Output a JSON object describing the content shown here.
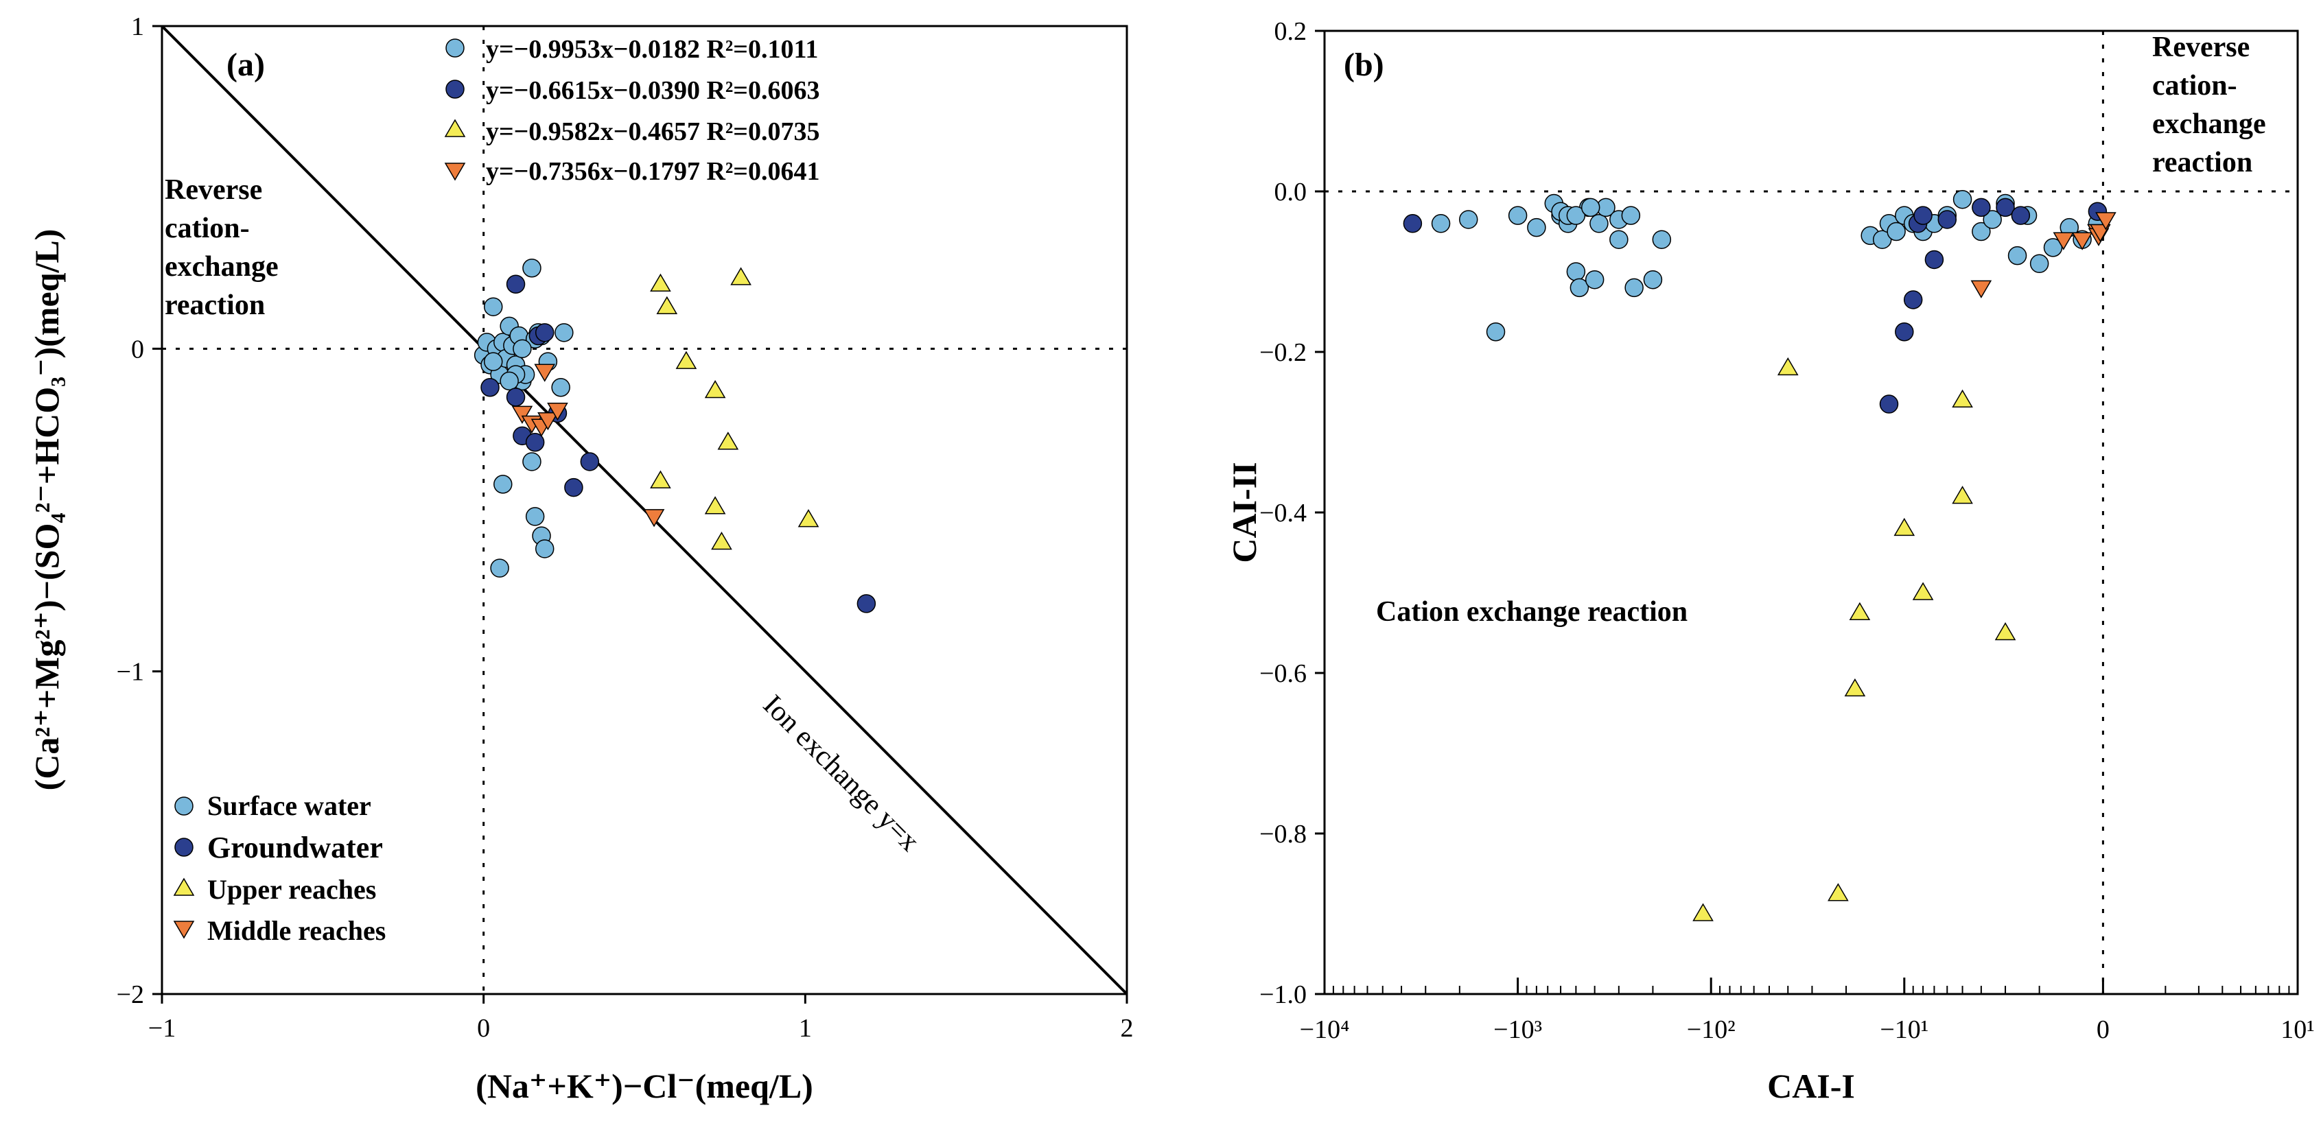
{
  "chart_data": [
    {
      "panel": "(a)",
      "type": "scatter",
      "xlabel": "(Na⁺+K⁺)−Cl⁻(meq/L)",
      "ylabel": "(Ca²⁺+Mg²⁺)−(SO₄²⁻+HCO₃⁻)(meq/L)",
      "xlim": [
        -1,
        2
      ],
      "ylim": [
        -2,
        1
      ],
      "xticks": [
        -1,
        0,
        1,
        2
      ],
      "xtick_labels": [
        "−1",
        "0",
        "1",
        "2"
      ],
      "yticks": [
        -2,
        -1,
        0,
        1
      ],
      "ytick_labels": [
        "−2",
        "−1",
        "0",
        "1"
      ],
      "reference_line": {
        "label": "Ion exchange  y=x",
        "x": [
          -1,
          2
        ],
        "y": [
          1,
          -2
        ]
      },
      "annotations": [
        "Reverse",
        "cation-",
        "exchange",
        "reaction"
      ],
      "equations": [
        "y=−0.9953x−0.0182 R²=0.1011",
        "y=−0.6615x−0.0390 R²=0.6063",
        "y=−0.9582x−0.4657 R²=0.0735",
        "y=−0.7356x−0.1797 R²=0.0641"
      ],
      "series": [
        {
          "name": "Surface water",
          "marker": "circle",
          "color": "#79b8dc",
          "x": [
            0.0,
            0.01,
            0.02,
            0.03,
            0.04,
            0.05,
            0.06,
            0.07,
            0.08,
            0.09,
            0.1,
            0.11,
            0.12,
            0.13,
            0.15,
            0.16,
            0.17,
            0.18,
            0.2,
            0.24,
            0.25,
            0.06,
            0.15,
            0.16,
            0.18,
            0.19,
            0.05,
            0.1,
            0.03,
            0.08,
            0.12
          ],
          "y": [
            -0.02,
            0.02,
            -0.05,
            0.13,
            0.0,
            -0.08,
            0.02,
            -0.03,
            0.07,
            0.01,
            -0.05,
            0.04,
            -0.1,
            -0.08,
            0.25,
            0.03,
            0.05,
            0.04,
            -0.04,
            -0.12,
            0.05,
            -0.42,
            -0.35,
            -0.52,
            -0.58,
            -0.62,
            -0.68,
            -0.08,
            -0.04,
            -0.1,
            0.0
          ]
        },
        {
          "name": "Groundwater",
          "marker": "circle",
          "color": "#2b3f8e",
          "x": [
            0.02,
            0.1,
            0.1,
            0.12,
            0.16,
            0.17,
            0.19,
            0.23,
            0.28,
            0.33,
            1.19
          ],
          "y": [
            -0.12,
            0.2,
            -0.15,
            -0.27,
            -0.29,
            0.04,
            0.05,
            -0.2,
            -0.43,
            -0.35,
            -0.79
          ]
        },
        {
          "name": "Upper reaches",
          "marker": "triangle-up",
          "color": "#f4ec56",
          "x": [
            0.55,
            0.57,
            0.63,
            0.72,
            0.76,
            0.8,
            0.55,
            0.72,
            0.74,
            1.01
          ],
          "y": [
            0.2,
            0.13,
            -0.04,
            -0.13,
            -0.29,
            0.22,
            -0.41,
            -0.49,
            -0.6,
            -0.53
          ]
        },
        {
          "name": "Middle reaches",
          "marker": "triangle-down",
          "color": "#ee7d3c",
          "x": [
            0.12,
            0.15,
            0.18,
            0.2,
            0.23,
            0.53,
            0.19
          ],
          "y": [
            -0.2,
            -0.23,
            -0.24,
            -0.22,
            -0.19,
            -0.52,
            -0.07
          ]
        }
      ],
      "legend": [
        "Surface water",
        "Groundwater",
        "Upper reaches",
        "Middle reaches"
      ]
    },
    {
      "panel": "(b)",
      "type": "scatter",
      "xlabel": "CAI-I",
      "ylabel": "CAI-II",
      "xscale": "symlog",
      "xlim": [
        -10000,
        10
      ],
      "ylim": [
        -1.0,
        0.2
      ],
      "xticks": [
        -10000,
        -1000,
        -100,
        -10,
        0,
        10
      ],
      "xtick_labels": [
        "−10⁴",
        "−10³",
        "−10²",
        "−10¹",
        "0",
        "10¹"
      ],
      "yticks": [
        -1.0,
        -0.8,
        -0.6,
        -0.4,
        -0.2,
        0.0,
        0.2
      ],
      "ytick_labels": [
        "−1.0",
        "−0.8",
        "−0.6",
        "−0.4",
        "−0.2",
        "0.0",
        "0.2"
      ],
      "annotations": {
        "top_right": [
          "Reverse",
          "cation-",
          "exchange",
          "reaction"
        ],
        "middle": "Cation exchange reaction"
      },
      "series": [
        {
          "name": "Surface water",
          "marker": "circle",
          "color": "#79b8dc",
          "x": [
            -2500,
            -1800,
            -1000,
            -800,
            -650,
            -600,
            -550,
            -500,
            -480,
            -430,
            -400,
            -380,
            -350,
            -300,
            -250,
            -200,
            -180,
            -600,
            -550,
            -500,
            -420,
            -300,
            -260,
            -1300,
            -15,
            -13,
            -12,
            -11,
            -10,
            -9,
            -8,
            -7,
            -6,
            -5,
            -4,
            -3.5,
            -3,
            -2.6,
            -2.3,
            -2,
            -1.7,
            -1.4,
            -1.2,
            -1
          ],
          "y": [
            -0.04,
            -0.035,
            -0.03,
            -0.045,
            -0.015,
            -0.03,
            -0.04,
            -0.1,
            -0.12,
            -0.02,
            -0.11,
            -0.04,
            -0.02,
            -0.035,
            -0.12,
            -0.11,
            -0.06,
            -0.025,
            -0.03,
            -0.03,
            -0.02,
            -0.06,
            -0.03,
            -0.175,
            -0.055,
            -0.06,
            -0.04,
            -0.05,
            -0.03,
            -0.04,
            -0.05,
            -0.04,
            -0.03,
            -0.01,
            -0.05,
            -0.035,
            -0.015,
            -0.08,
            -0.03,
            -0.09,
            -0.07,
            -0.045,
            -0.06,
            -0.04
          ]
        },
        {
          "name": "Groundwater",
          "marker": "circle",
          "color": "#2b3f8e",
          "x": [
            -3500,
            -12,
            -10,
            -9,
            -8.5,
            -8,
            -7,
            -6,
            -4,
            -3,
            -2.5,
            -1
          ],
          "y": [
            -0.04,
            -0.265,
            -0.175,
            -0.135,
            -0.04,
            -0.03,
            -0.085,
            -0.035,
            -0.02,
            -0.02,
            -0.03,
            -0.025
          ]
        },
        {
          "name": "Upper reaches",
          "marker": "triangle-up",
          "color": "#f4ec56",
          "x": [
            -110,
            -40,
            -22,
            -18,
            -17,
            -10,
            -8,
            -5,
            -5,
            -3
          ],
          "y": [
            -0.9,
            -0.22,
            -0.875,
            -0.62,
            -0.525,
            -0.42,
            -0.5,
            -0.38,
            -0.26,
            -0.55
          ]
        },
        {
          "name": "Middle reaches",
          "marker": "triangle-down",
          "color": "#ee7d3c",
          "x": [
            -4,
            -1.5,
            -1.2,
            -1,
            -0.8,
            -0.5,
            0.5
          ],
          "y": [
            -0.12,
            -0.06,
            -0.06,
            -0.05,
            -0.055,
            -0.05,
            -0.035
          ]
        }
      ]
    }
  ]
}
